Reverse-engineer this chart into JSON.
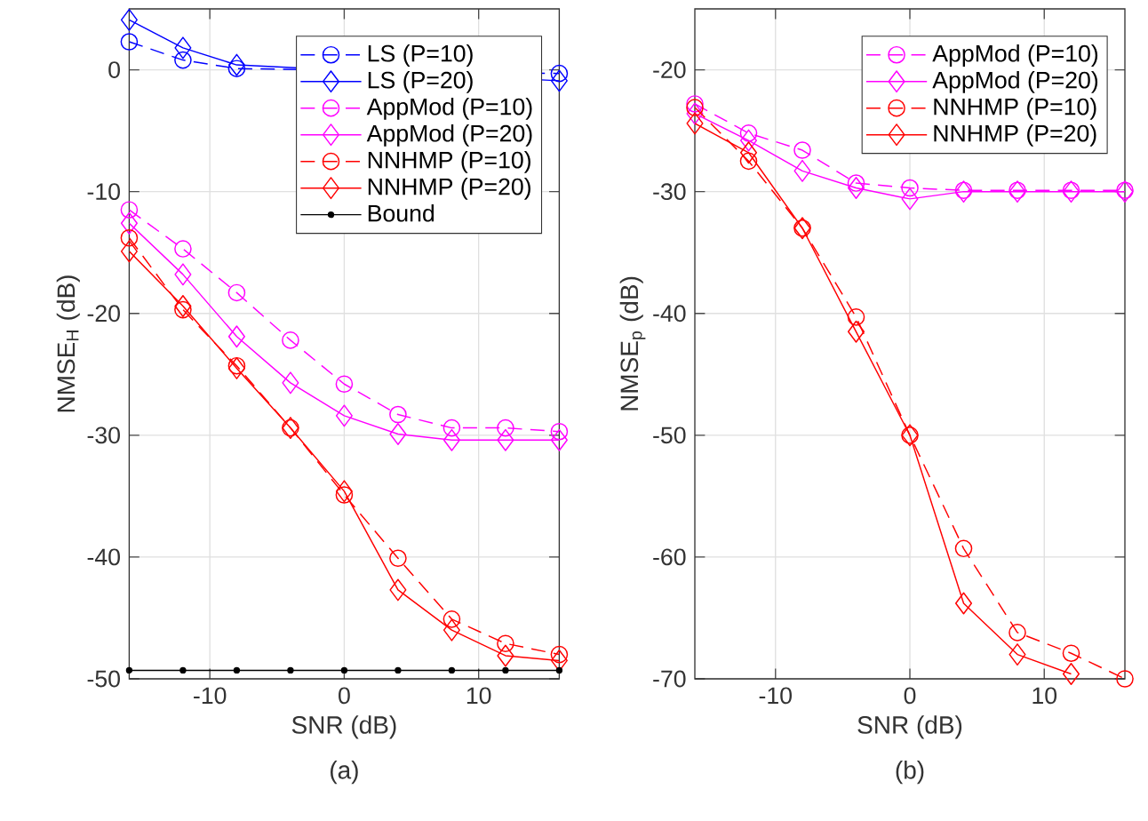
{
  "chart_data": [
    {
      "type": "line",
      "xlabel": "SNR (dB)",
      "ylabel": "NMSE$_{H}$ (dB)",
      "annotations": [
        "(a)"
      ],
      "x": [
        -16,
        -12,
        -8,
        -4,
        0,
        4,
        8,
        12,
        16
      ],
      "xlim": [
        -16,
        16
      ],
      "ylim": [
        -50,
        5
      ],
      "xticks": [
        -10,
        0,
        10
      ],
      "yticks": [
        -50,
        -40,
        -30,
        -20,
        -10,
        0
      ],
      "grid": true,
      "legend": "top right",
      "series": [
        {
          "name": "LS (P=10)",
          "color": "#0000ff",
          "marker": "circle",
          "line_style": "dashed",
          "values": [
            2.3,
            0.8,
            0.1,
            null,
            null,
            null,
            null,
            null,
            -0.3
          ]
        },
        {
          "name": "LS (P=20)",
          "color": "#0000ff",
          "marker": "diamond",
          "line_style": "solid",
          "values": [
            4.1,
            1.8,
            0.4,
            null,
            null,
            null,
            null,
            null,
            -0.9
          ]
        },
        {
          "name": "AppMod (P=10)",
          "color": "#ff00ff",
          "marker": "circle",
          "line_style": "dashed",
          "values": [
            -11.5,
            -14.7,
            -18.3,
            -22.2,
            -25.8,
            -28.3,
            -29.4,
            -29.4,
            -29.7
          ]
        },
        {
          "name": "AppMod (P=20)",
          "color": "#ff00ff",
          "marker": "diamond",
          "line_style": "solid",
          "values": [
            -12.6,
            -16.8,
            -21.9,
            -25.7,
            -28.4,
            -29.9,
            -30.4,
            -30.4,
            -30.4
          ]
        },
        {
          "name": "NNHMP (P=10)",
          "color": "#ff0000",
          "marker": "circle",
          "line_style": "dashed",
          "values": [
            -13.8,
            -19.7,
            -24.3,
            -29.4,
            -34.9,
            -40.1,
            -45.1,
            -47.1,
            -48.0
          ]
        },
        {
          "name": "NNHMP (P=20)",
          "color": "#ff0000",
          "marker": "diamond",
          "line_style": "solid",
          "values": [
            -14.9,
            -19.4,
            -24.5,
            -29.4,
            -34.6,
            -42.7,
            -46.0,
            -48.1,
            -48.5
          ]
        },
        {
          "name": "Bound",
          "color": "#000000",
          "marker": "dot",
          "line_style": "solid",
          "values": [
            -49.3,
            -49.3,
            -49.3,
            -49.3,
            -49.3,
            -49.3,
            -49.3,
            -49.3,
            -49.3
          ]
        }
      ]
    },
    {
      "type": "line",
      "xlabel": "SNR (dB)",
      "ylabel": "NMSE$_{p}$ (dB)",
      "annotations": [
        "(b)"
      ],
      "x": [
        -16,
        -12,
        -8,
        -4,
        0,
        4,
        8,
        12,
        16
      ],
      "xlim": [
        -16,
        16
      ],
      "ylim": [
        -70,
        -15
      ],
      "xticks": [
        -10,
        0,
        10
      ],
      "yticks": [
        -70,
        -60,
        -50,
        -40,
        -30,
        -20
      ],
      "grid": true,
      "legend": "top right",
      "series": [
        {
          "name": "AppMod (P=10)",
          "color": "#ff00ff",
          "marker": "circle",
          "line_style": "dashed",
          "values": [
            -22.8,
            -25.2,
            -26.6,
            -29.3,
            -29.7,
            -29.9,
            -29.9,
            -29.9,
            -29.9
          ]
        },
        {
          "name": "AppMod (P=20)",
          "color": "#ff00ff",
          "marker": "diamond",
          "line_style": "solid",
          "values": [
            -23.6,
            -25.8,
            -28.3,
            -29.7,
            -30.6,
            -30.0,
            -30.0,
            -30.0,
            -30.0
          ]
        },
        {
          "name": "NNHMP (P=10)",
          "color": "#ff0000",
          "marker": "circle",
          "line_style": "dashed",
          "values": [
            -23.1,
            -27.5,
            -33.0,
            -40.3,
            -50.0,
            -59.3,
            -66.2,
            -67.9,
            -70.0
          ]
        },
        {
          "name": "NNHMP (P=20)",
          "color": "#ff0000",
          "marker": "diamond",
          "line_style": "solid",
          "values": [
            -24.4,
            -26.8,
            -33.0,
            -41.5,
            -50.0,
            -63.8,
            -68.0,
            -69.6,
            null
          ]
        }
      ]
    }
  ]
}
